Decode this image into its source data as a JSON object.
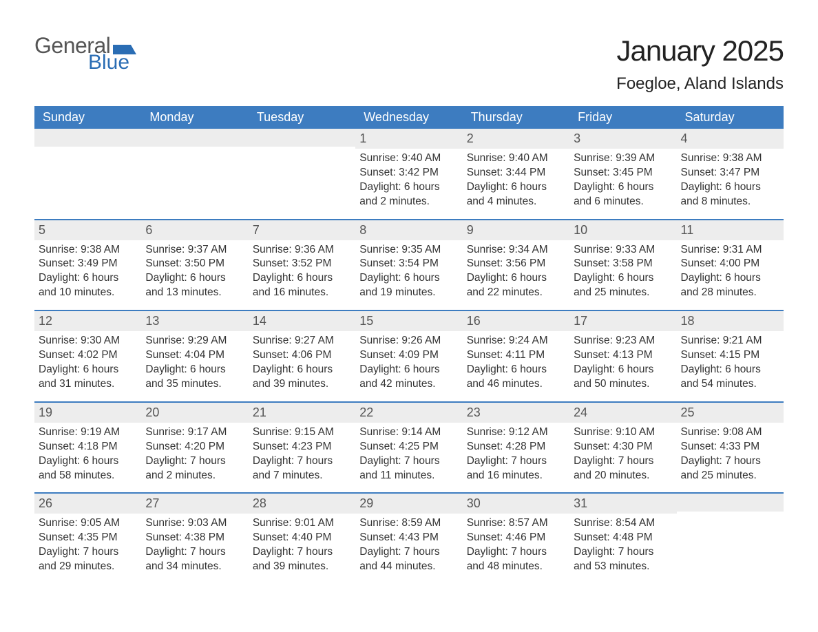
{
  "logo": {
    "text_general": "General",
    "text_blue": "Blue",
    "flag_color": "#2a6db4"
  },
  "title": "January 2025",
  "location": "Foegloe, Aland Islands",
  "colors": {
    "header_bg": "#3d7cc0",
    "header_text": "#ffffff",
    "daynum_bg": "#ededed",
    "daynum_text": "#555555",
    "body_text": "#333333",
    "week_border": "#3d7cc0",
    "page_bg": "#ffffff"
  },
  "typography": {
    "title_fontsize": 42,
    "location_fontsize": 24,
    "weekday_fontsize": 18,
    "daynum_fontsize": 18,
    "body_fontsize": 15.5
  },
  "weekdays": [
    "Sunday",
    "Monday",
    "Tuesday",
    "Wednesday",
    "Thursday",
    "Friday",
    "Saturday"
  ],
  "weeks": [
    {
      "days": [
        {
          "num": "",
          "sunrise": "",
          "sunset": "",
          "dl1": "",
          "dl2": ""
        },
        {
          "num": "",
          "sunrise": "",
          "sunset": "",
          "dl1": "",
          "dl2": ""
        },
        {
          "num": "",
          "sunrise": "",
          "sunset": "",
          "dl1": "",
          "dl2": ""
        },
        {
          "num": "1",
          "sunrise": "Sunrise: 9:40 AM",
          "sunset": "Sunset: 3:42 PM",
          "dl1": "Daylight: 6 hours",
          "dl2": "and 2 minutes."
        },
        {
          "num": "2",
          "sunrise": "Sunrise: 9:40 AM",
          "sunset": "Sunset: 3:44 PM",
          "dl1": "Daylight: 6 hours",
          "dl2": "and 4 minutes."
        },
        {
          "num": "3",
          "sunrise": "Sunrise: 9:39 AM",
          "sunset": "Sunset: 3:45 PM",
          "dl1": "Daylight: 6 hours",
          "dl2": "and 6 minutes."
        },
        {
          "num": "4",
          "sunrise": "Sunrise: 9:38 AM",
          "sunset": "Sunset: 3:47 PM",
          "dl1": "Daylight: 6 hours",
          "dl2": "and 8 minutes."
        }
      ]
    },
    {
      "days": [
        {
          "num": "5",
          "sunrise": "Sunrise: 9:38 AM",
          "sunset": "Sunset: 3:49 PM",
          "dl1": "Daylight: 6 hours",
          "dl2": "and 10 minutes."
        },
        {
          "num": "6",
          "sunrise": "Sunrise: 9:37 AM",
          "sunset": "Sunset: 3:50 PM",
          "dl1": "Daylight: 6 hours",
          "dl2": "and 13 minutes."
        },
        {
          "num": "7",
          "sunrise": "Sunrise: 9:36 AM",
          "sunset": "Sunset: 3:52 PM",
          "dl1": "Daylight: 6 hours",
          "dl2": "and 16 minutes."
        },
        {
          "num": "8",
          "sunrise": "Sunrise: 9:35 AM",
          "sunset": "Sunset: 3:54 PM",
          "dl1": "Daylight: 6 hours",
          "dl2": "and 19 minutes."
        },
        {
          "num": "9",
          "sunrise": "Sunrise: 9:34 AM",
          "sunset": "Sunset: 3:56 PM",
          "dl1": "Daylight: 6 hours",
          "dl2": "and 22 minutes."
        },
        {
          "num": "10",
          "sunrise": "Sunrise: 9:33 AM",
          "sunset": "Sunset: 3:58 PM",
          "dl1": "Daylight: 6 hours",
          "dl2": "and 25 minutes."
        },
        {
          "num": "11",
          "sunrise": "Sunrise: 9:31 AM",
          "sunset": "Sunset: 4:00 PM",
          "dl1": "Daylight: 6 hours",
          "dl2": "and 28 minutes."
        }
      ]
    },
    {
      "days": [
        {
          "num": "12",
          "sunrise": "Sunrise: 9:30 AM",
          "sunset": "Sunset: 4:02 PM",
          "dl1": "Daylight: 6 hours",
          "dl2": "and 31 minutes."
        },
        {
          "num": "13",
          "sunrise": "Sunrise: 9:29 AM",
          "sunset": "Sunset: 4:04 PM",
          "dl1": "Daylight: 6 hours",
          "dl2": "and 35 minutes."
        },
        {
          "num": "14",
          "sunrise": "Sunrise: 9:27 AM",
          "sunset": "Sunset: 4:06 PM",
          "dl1": "Daylight: 6 hours",
          "dl2": "and 39 minutes."
        },
        {
          "num": "15",
          "sunrise": "Sunrise: 9:26 AM",
          "sunset": "Sunset: 4:09 PM",
          "dl1": "Daylight: 6 hours",
          "dl2": "and 42 minutes."
        },
        {
          "num": "16",
          "sunrise": "Sunrise: 9:24 AM",
          "sunset": "Sunset: 4:11 PM",
          "dl1": "Daylight: 6 hours",
          "dl2": "and 46 minutes."
        },
        {
          "num": "17",
          "sunrise": "Sunrise: 9:23 AM",
          "sunset": "Sunset: 4:13 PM",
          "dl1": "Daylight: 6 hours",
          "dl2": "and 50 minutes."
        },
        {
          "num": "18",
          "sunrise": "Sunrise: 9:21 AM",
          "sunset": "Sunset: 4:15 PM",
          "dl1": "Daylight: 6 hours",
          "dl2": "and 54 minutes."
        }
      ]
    },
    {
      "days": [
        {
          "num": "19",
          "sunrise": "Sunrise: 9:19 AM",
          "sunset": "Sunset: 4:18 PM",
          "dl1": "Daylight: 6 hours",
          "dl2": "and 58 minutes."
        },
        {
          "num": "20",
          "sunrise": "Sunrise: 9:17 AM",
          "sunset": "Sunset: 4:20 PM",
          "dl1": "Daylight: 7 hours",
          "dl2": "and 2 minutes."
        },
        {
          "num": "21",
          "sunrise": "Sunrise: 9:15 AM",
          "sunset": "Sunset: 4:23 PM",
          "dl1": "Daylight: 7 hours",
          "dl2": "and 7 minutes."
        },
        {
          "num": "22",
          "sunrise": "Sunrise: 9:14 AM",
          "sunset": "Sunset: 4:25 PM",
          "dl1": "Daylight: 7 hours",
          "dl2": "and 11 minutes."
        },
        {
          "num": "23",
          "sunrise": "Sunrise: 9:12 AM",
          "sunset": "Sunset: 4:28 PM",
          "dl1": "Daylight: 7 hours",
          "dl2": "and 16 minutes."
        },
        {
          "num": "24",
          "sunrise": "Sunrise: 9:10 AM",
          "sunset": "Sunset: 4:30 PM",
          "dl1": "Daylight: 7 hours",
          "dl2": "and 20 minutes."
        },
        {
          "num": "25",
          "sunrise": "Sunrise: 9:08 AM",
          "sunset": "Sunset: 4:33 PM",
          "dl1": "Daylight: 7 hours",
          "dl2": "and 25 minutes."
        }
      ]
    },
    {
      "days": [
        {
          "num": "26",
          "sunrise": "Sunrise: 9:05 AM",
          "sunset": "Sunset: 4:35 PM",
          "dl1": "Daylight: 7 hours",
          "dl2": "and 29 minutes."
        },
        {
          "num": "27",
          "sunrise": "Sunrise: 9:03 AM",
          "sunset": "Sunset: 4:38 PM",
          "dl1": "Daylight: 7 hours",
          "dl2": "and 34 minutes."
        },
        {
          "num": "28",
          "sunrise": "Sunrise: 9:01 AM",
          "sunset": "Sunset: 4:40 PM",
          "dl1": "Daylight: 7 hours",
          "dl2": "and 39 minutes."
        },
        {
          "num": "29",
          "sunrise": "Sunrise: 8:59 AM",
          "sunset": "Sunset: 4:43 PM",
          "dl1": "Daylight: 7 hours",
          "dl2": "and 44 minutes."
        },
        {
          "num": "30",
          "sunrise": "Sunrise: 8:57 AM",
          "sunset": "Sunset: 4:46 PM",
          "dl1": "Daylight: 7 hours",
          "dl2": "and 48 minutes."
        },
        {
          "num": "31",
          "sunrise": "Sunrise: 8:54 AM",
          "sunset": "Sunset: 4:48 PM",
          "dl1": "Daylight: 7 hours",
          "dl2": "and 53 minutes."
        },
        {
          "num": "",
          "sunrise": "",
          "sunset": "",
          "dl1": "",
          "dl2": ""
        }
      ]
    }
  ]
}
